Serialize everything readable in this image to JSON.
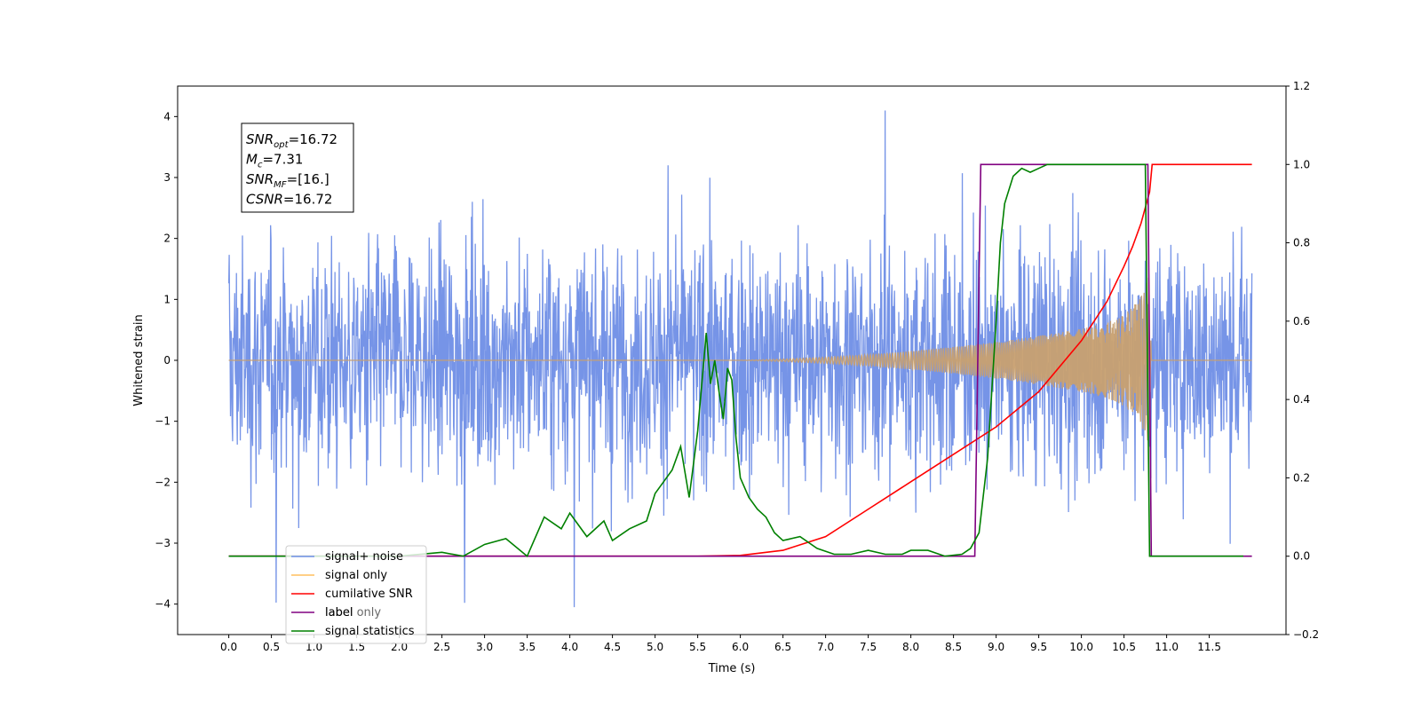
{
  "chart_data": {
    "type": "line",
    "xlabel": "Time (s)",
    "ylabel": "Whitened strain",
    "xlim": [
      -0.6,
      12.4
    ],
    "ylim": [
      -4.5,
      4.5
    ],
    "y2lim": [
      -0.2,
      1.2
    ],
    "x_ticks": [
      "0.0",
      "0.5",
      "1.0",
      "1.5",
      "2.0",
      "2.5",
      "3.0",
      "3.5",
      "4.0",
      "4.5",
      "5.0",
      "5.5",
      "6.0",
      "6.5",
      "7.0",
      "7.5",
      "8.0",
      "8.5",
      "9.0",
      "9.5",
      "10.0",
      "10.5",
      "11.0",
      "11.5"
    ],
    "y_ticks": [
      "−4",
      "−3",
      "−2",
      "−1",
      "0",
      "1",
      "2",
      "3",
      "4"
    ],
    "y2_ticks": [
      "−0.2",
      "0.0",
      "0.2",
      "0.4",
      "0.6",
      "0.8",
      "1.0",
      "1.2"
    ],
    "annotation": {
      "lines": [
        {
          "var": "SNR",
          "sub": "opt",
          "value": "=16.72"
        },
        {
          "var": "M",
          "sub": "c",
          "value": "=7.31"
        },
        {
          "var": "SNR",
          "sub": "MF",
          "value": "=[16.]"
        },
        {
          "var": "CSNR",
          "sub": "",
          "value": "=16.72"
        }
      ]
    },
    "legend": {
      "placement": "lower-left",
      "entries": [
        {
          "label": "signal+ noise",
          "color": "#6f8ee6"
        },
        {
          "label": "signal only",
          "color": "#ffbf5f"
        },
        {
          "label": "cumilative SNR",
          "color": "#ff0000"
        },
        {
          "label": "label",
          "color": "#800080"
        },
        {
          "label": "signal statistics",
          "color": "#008000"
        }
      ],
      "ghost_labels": [
        "label only"
      ]
    },
    "series": [
      {
        "name": "signal+ noise",
        "axis": "left",
        "color": "#6f8ee6",
        "x_range": [
          0.0,
          12.0
        ],
        "description_amplitude_typical": 1.6,
        "description_amplitude_max": 4.1
      },
      {
        "name": "signal only",
        "axis": "left",
        "color": "#c8a070",
        "envelope": {
          "x": [
            0.0,
            6.0,
            6.5,
            7.0,
            7.5,
            8.0,
            8.5,
            9.0,
            9.5,
            10.0,
            10.3,
            10.5,
            10.65,
            10.75,
            10.8,
            10.82,
            12.0
          ],
          "amp": [
            0.0,
            0.0,
            0.02,
            0.05,
            0.09,
            0.15,
            0.22,
            0.3,
            0.4,
            0.52,
            0.62,
            0.75,
            0.95,
            1.2,
            1.5,
            0.0,
            0.0
          ]
        }
      },
      {
        "name": "cumilative SNR",
        "axis": "right",
        "color": "#ff0000",
        "x": [
          0.0,
          5.5,
          6.0,
          6.5,
          7.0,
          7.5,
          8.0,
          8.5,
          9.0,
          9.5,
          10.0,
          10.3,
          10.5,
          10.6,
          10.7,
          10.8,
          10.83,
          12.0
        ],
        "values": [
          0.0,
          0.0,
          0.002,
          0.015,
          0.05,
          0.12,
          0.19,
          0.26,
          0.33,
          0.42,
          0.55,
          0.65,
          0.74,
          0.79,
          0.85,
          0.93,
          1.0,
          1.0
        ]
      },
      {
        "name": "label",
        "axis": "right",
        "color": "#800080",
        "x": [
          0.0,
          8.75,
          8.82,
          10.78,
          10.82,
          12.0
        ],
        "values": [
          0.0,
          0.0,
          1.0,
          1.0,
          0.0,
          0.0
        ]
      },
      {
        "name": "signal statistics",
        "axis": "right",
        "color": "#008000",
        "x": [
          0.0,
          2.0,
          2.5,
          2.75,
          3.0,
          3.25,
          3.5,
          3.7,
          3.9,
          4.0,
          4.2,
          4.4,
          4.5,
          4.7,
          4.9,
          5.0,
          5.2,
          5.3,
          5.4,
          5.5,
          5.6,
          5.65,
          5.7,
          5.75,
          5.8,
          5.85,
          5.9,
          5.95,
          6.0,
          6.1,
          6.2,
          6.3,
          6.4,
          6.5,
          6.7,
          6.9,
          7.1,
          7.3,
          7.5,
          7.7,
          7.9,
          8.0,
          8.2,
          8.4,
          8.6,
          8.7,
          8.8,
          8.9,
          9.0,
          9.05,
          9.1,
          9.2,
          9.3,
          9.4,
          9.5,
          9.6,
          9.8,
          10.0,
          10.5,
          10.75,
          10.8,
          10.85,
          11.0,
          11.9
        ],
        "values": [
          0.0,
          0.0,
          0.01,
          0.0,
          0.03,
          0.045,
          0.0,
          0.1,
          0.07,
          0.11,
          0.05,
          0.09,
          0.04,
          0.07,
          0.09,
          0.16,
          0.22,
          0.28,
          0.15,
          0.32,
          0.57,
          0.44,
          0.5,
          0.42,
          0.35,
          0.48,
          0.45,
          0.3,
          0.2,
          0.15,
          0.12,
          0.1,
          0.06,
          0.04,
          0.05,
          0.02,
          0.005,
          0.005,
          0.015,
          0.005,
          0.005,
          0.015,
          0.015,
          0.0,
          0.005,
          0.02,
          0.06,
          0.25,
          0.6,
          0.8,
          0.9,
          0.97,
          0.99,
          0.98,
          0.99,
          1.0,
          1.0,
          1.0,
          1.0,
          1.0,
          0.0,
          0.0,
          0.0,
          0.0
        ]
      }
    ]
  }
}
